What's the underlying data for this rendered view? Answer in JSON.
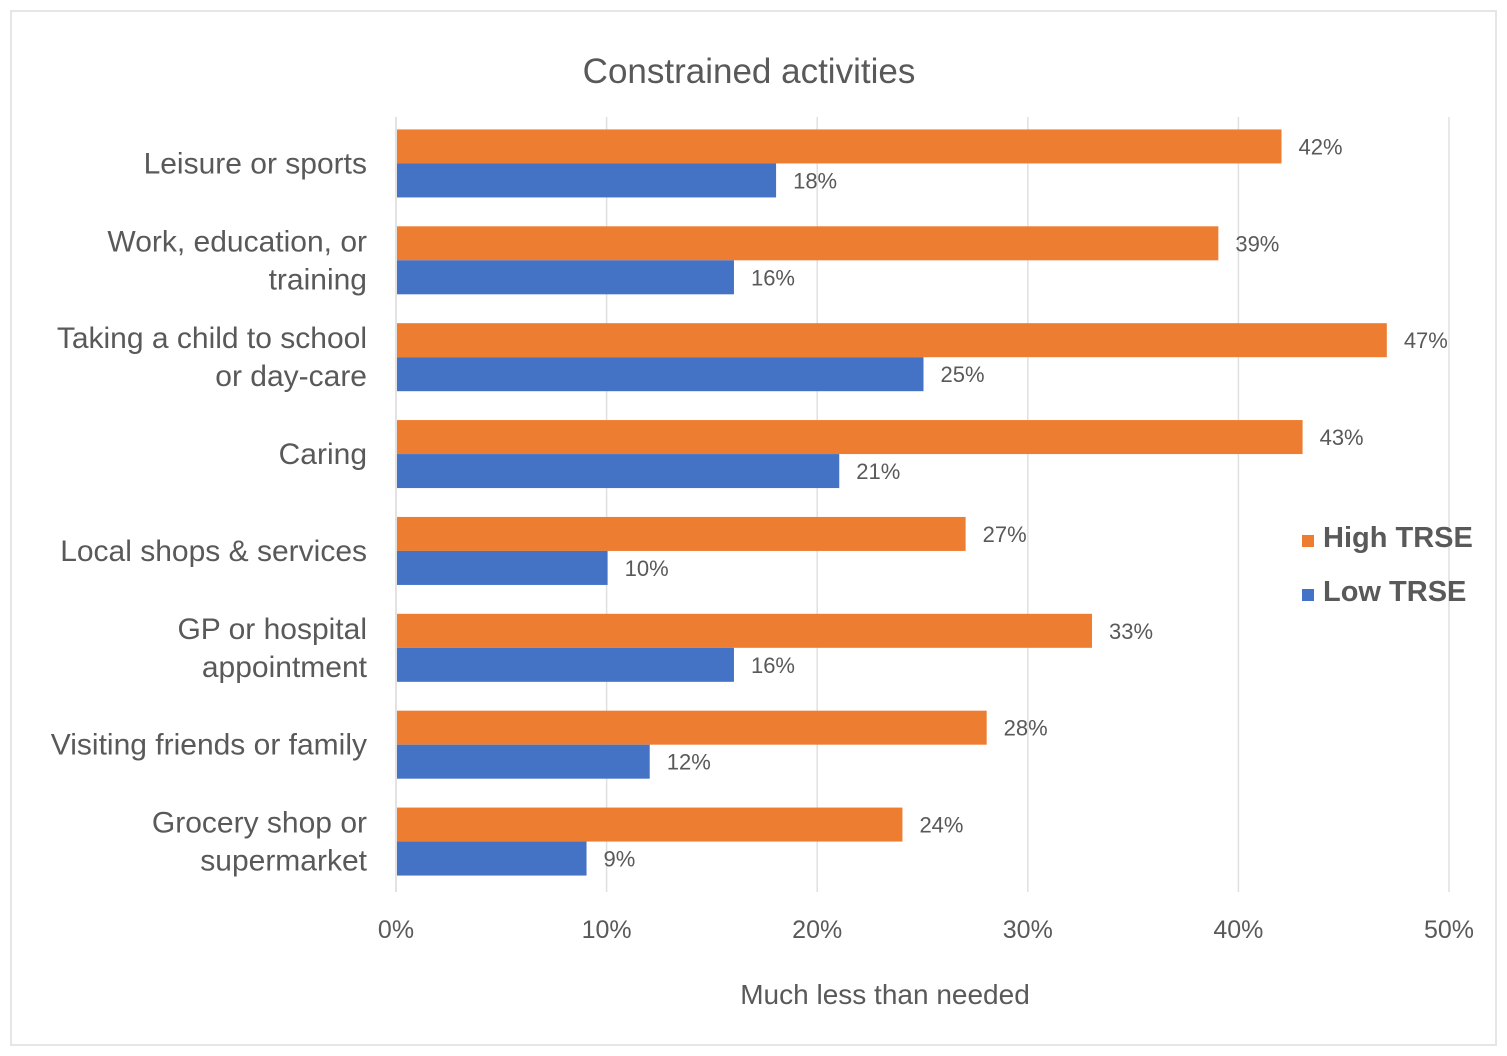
{
  "chart_data": {
    "type": "bar",
    "orientation": "horizontal",
    "title": "Constrained activities",
    "xlabel": "Much less than needed",
    "ylabel": "",
    "categories": [
      "Leisure or sports",
      "Work, education, or training",
      "Taking a child to school or day-care",
      "Caring",
      "Local shops & services",
      "GP or hospital appointment",
      "Visiting friends or family",
      "Grocery shop or supermarket"
    ],
    "category_lines": [
      [
        "Leisure or sports"
      ],
      [
        "Work, education, or",
        "training"
      ],
      [
        "Taking a child to school",
        "or day-care"
      ],
      [
        "Caring"
      ],
      [
        "Local shops & services"
      ],
      [
        "GP or hospital",
        "appointment"
      ],
      [
        "Visiting friends or family"
      ],
      [
        "Grocery shop or",
        "supermarket"
      ]
    ],
    "series": [
      {
        "name": "High TRSE",
        "color": "#ED7D31",
        "values": [
          42,
          39,
          47,
          43,
          27,
          33,
          28,
          24
        ],
        "labels": [
          "42%",
          "39%",
          "47%",
          "43%",
          "27%",
          "33%",
          "28%",
          "24%"
        ]
      },
      {
        "name": "Low TRSE",
        "color": "#4472C4",
        "values": [
          18,
          16,
          25,
          21,
          10,
          16,
          12,
          9
        ],
        "labels": [
          "18%",
          "16%",
          "25%",
          "21%",
          "10%",
          "16%",
          "12%",
          "9%"
        ]
      }
    ],
    "xlim": [
      0,
      50
    ],
    "xticks": [
      0,
      10,
      20,
      30,
      40,
      50
    ],
    "xtick_labels": [
      "0%",
      "10%",
      "20%",
      "30%",
      "40%",
      "50%"
    ],
    "grid": true,
    "legend_position": "right"
  }
}
